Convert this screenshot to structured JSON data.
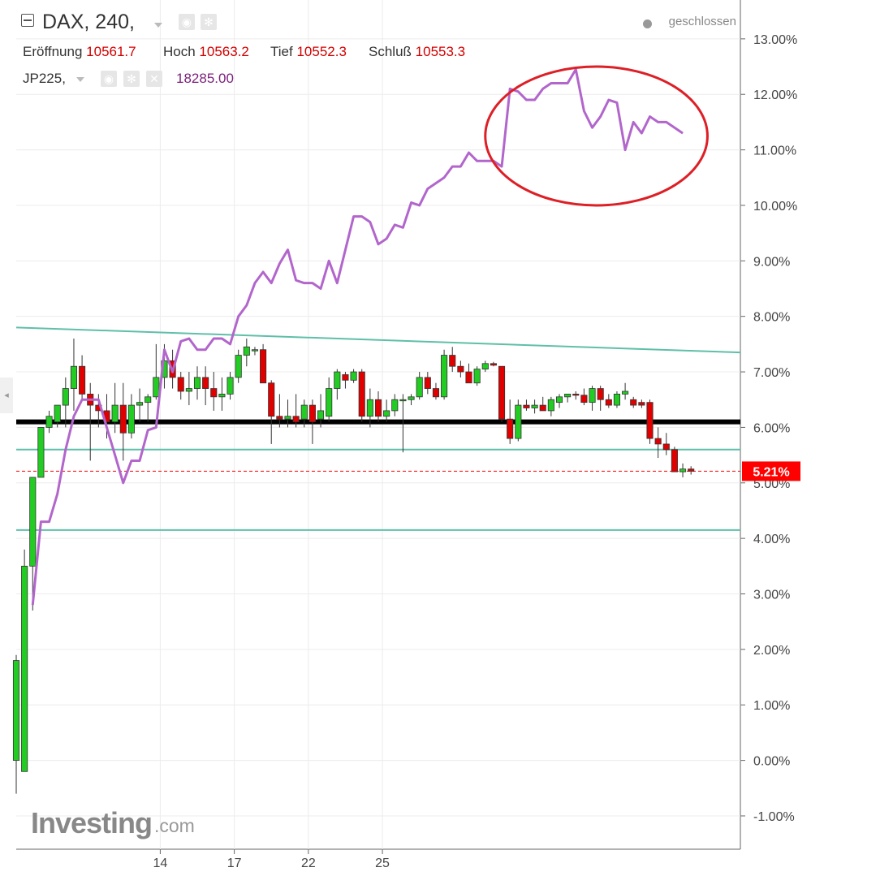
{
  "header": {
    "symbol_title": "DAX, 240,",
    "ohlc": [
      {
        "label": "Eröffnung",
        "value": "10561.7"
      },
      {
        "label": "Hoch",
        "value": "10563.2"
      },
      {
        "label": "Tief",
        "value": "10552.3"
      },
      {
        "label": "Schluß",
        "value": "10553.3"
      }
    ],
    "compare_symbol": "JP225,",
    "compare_value": "18285.00",
    "market_status": "geschlossen"
  },
  "branding": {
    "logo": "Investing",
    "logo_suffix": ".com"
  },
  "icons": [
    "collapse-icon",
    "eye-icon",
    "gear-icon",
    "close-icon",
    "caret-down-icon"
  ],
  "colors": {
    "up": "#22cc22",
    "down": "#e00000",
    "jp225_line": "#b266cc",
    "channel": "#5fbfa8",
    "support": "#000000",
    "annotation": "#dd1f26",
    "last_price": "#ff0000"
  },
  "chart_data": {
    "type": "candlestick+line",
    "x_tick_labels": [
      "14",
      "17",
      "22",
      "25"
    ],
    "y_axis": {
      "unit": "%",
      "range": [
        -1.6,
        13.7
      ],
      "tick_labels": [
        "13.00%",
        "12.00%",
        "11.00%",
        "10.00%",
        "9.00%",
        "8.00%",
        "7.00%",
        "6.00%",
        "5.00%",
        "4.00%",
        "3.00%",
        "2.00%",
        "1.00%",
        "0.00%",
        "-1.00%"
      ],
      "ticks": [
        13,
        12,
        11,
        10,
        9,
        8,
        7,
        6,
        5,
        4,
        3,
        2,
        1,
        0,
        -1
      ]
    },
    "last_value_label": "5.21%",
    "last_value": 5.21,
    "x_tick_positions": [
      17.5,
      26.5,
      35.5,
      44.5
    ],
    "series": [
      {
        "name": "DAX",
        "kind": "candlestick",
        "candles": [
          [
            0.0,
            0.0,
            1.9,
            -0.6,
            1.8
          ],
          [
            1.0,
            -0.2,
            3.8,
            -0.2,
            3.5
          ],
          [
            2.0,
            3.5,
            5.1,
            2.7,
            5.1
          ],
          [
            3.0,
            5.1,
            6.0,
            5.1,
            6.0
          ],
          [
            4.0,
            6.0,
            6.3,
            5.9,
            6.2
          ],
          [
            5.0,
            6.1,
            6.4,
            6.0,
            6.4
          ],
          [
            6.0,
            6.4,
            6.9,
            6.0,
            6.7
          ],
          [
            7.0,
            6.7,
            7.6,
            6.3,
            7.1
          ],
          [
            8.0,
            7.1,
            7.3,
            6.5,
            6.6
          ],
          [
            9.0,
            6.6,
            6.8,
            5.4,
            6.4
          ],
          [
            10.0,
            6.4,
            6.6,
            6.0,
            6.3
          ],
          [
            11.0,
            6.3,
            6.6,
            5.8,
            6.1
          ],
          [
            12.0,
            6.1,
            6.8,
            5.9,
            6.4
          ],
          [
            13.0,
            6.4,
            6.8,
            5.4,
            5.9
          ],
          [
            14.0,
            5.9,
            6.6,
            5.8,
            6.4
          ],
          [
            15.0,
            6.4,
            6.7,
            6.1,
            6.45
          ],
          [
            16.0,
            6.45,
            6.6,
            6.1,
            6.55
          ],
          [
            17.0,
            6.55,
            7.5,
            6.5,
            6.9
          ],
          [
            18.0,
            6.9,
            7.5,
            6.7,
            7.2
          ],
          [
            19.0,
            7.2,
            7.4,
            6.7,
            6.9
          ],
          [
            20.0,
            6.9,
            7.0,
            6.5,
            6.65
          ],
          [
            21.0,
            6.65,
            7.0,
            6.4,
            6.7
          ],
          [
            22.0,
            6.7,
            7.1,
            6.5,
            6.9
          ],
          [
            23.0,
            6.9,
            7.1,
            6.4,
            6.7
          ],
          [
            24.0,
            6.7,
            7.0,
            6.3,
            6.55
          ],
          [
            25.0,
            6.55,
            6.9,
            6.3,
            6.6
          ],
          [
            26.0,
            6.6,
            7.0,
            6.5,
            6.9
          ],
          [
            27.0,
            6.9,
            7.4,
            6.8,
            7.3
          ],
          [
            28.0,
            7.3,
            7.6,
            7.1,
            7.45
          ],
          [
            29.0,
            7.4,
            7.45,
            7.3,
            7.4
          ],
          [
            30.0,
            7.4,
            7.5,
            6.9,
            6.8
          ],
          [
            31.0,
            6.8,
            6.85,
            5.7,
            6.2
          ],
          [
            32.0,
            6.2,
            6.6,
            6.0,
            6.15
          ],
          [
            33.0,
            6.15,
            6.5,
            6.0,
            6.2
          ],
          [
            34.0,
            6.2,
            6.6,
            6.0,
            6.1
          ],
          [
            35.0,
            6.15,
            6.5,
            6.0,
            6.4
          ],
          [
            36.0,
            6.4,
            6.5,
            5.7,
            6.1
          ],
          [
            37.0,
            6.15,
            6.6,
            6.0,
            6.3
          ],
          [
            38.0,
            6.2,
            6.9,
            6.1,
            6.7
          ],
          [
            39.0,
            6.7,
            7.05,
            6.5,
            7.0
          ],
          [
            40.0,
            6.95,
            7.0,
            6.7,
            6.85
          ],
          [
            41.0,
            6.85,
            7.05,
            6.8,
            7.0
          ],
          [
            42.0,
            7.0,
            7.05,
            6.1,
            6.2
          ],
          [
            43.0,
            6.2,
            6.7,
            6.0,
            6.5
          ],
          [
            44.0,
            6.5,
            6.65,
            6.1,
            6.2
          ],
          [
            45.0,
            6.2,
            6.5,
            6.1,
            6.3
          ],
          [
            46.0,
            6.3,
            6.6,
            6.2,
            6.5
          ],
          [
            47.0,
            6.5,
            6.6,
            5.55,
            6.5
          ],
          [
            48.0,
            6.5,
            6.6,
            6.4,
            6.55
          ],
          [
            49.0,
            6.55,
            7.0,
            6.5,
            6.9
          ],
          [
            50.0,
            6.9,
            7.0,
            6.6,
            6.7
          ],
          [
            51.0,
            6.7,
            6.8,
            6.5,
            6.55
          ],
          [
            52.0,
            6.55,
            7.4,
            6.5,
            7.3
          ],
          [
            53.0,
            7.3,
            7.45,
            7.0,
            7.1
          ],
          [
            54.0,
            7.1,
            7.2,
            6.9,
            7.0
          ],
          [
            55.0,
            7.0,
            7.15,
            6.8,
            6.8
          ],
          [
            56.0,
            6.8,
            7.1,
            6.75,
            7.05
          ],
          [
            57.0,
            7.05,
            7.2,
            7.0,
            7.15
          ],
          [
            58.0,
            7.15,
            7.18,
            7.1,
            7.12
          ],
          [
            59.0,
            7.1,
            7.1,
            6.1,
            6.15
          ],
          [
            60.0,
            6.15,
            6.5,
            5.7,
            5.8
          ],
          [
            61.0,
            5.8,
            6.5,
            5.75,
            6.4
          ],
          [
            62.0,
            6.4,
            6.5,
            6.3,
            6.35
          ],
          [
            63.0,
            6.35,
            6.5,
            6.25,
            6.4
          ],
          [
            64.0,
            6.4,
            6.55,
            6.3,
            6.3
          ],
          [
            65.0,
            6.3,
            6.55,
            6.2,
            6.5
          ],
          [
            66.0,
            6.45,
            6.6,
            6.35,
            6.55
          ],
          [
            67.0,
            6.55,
            6.6,
            6.45,
            6.6
          ],
          [
            68.0,
            6.6,
            6.65,
            6.5,
            6.58
          ],
          [
            69.0,
            6.58,
            6.7,
            6.4,
            6.45
          ],
          [
            70.0,
            6.45,
            6.75,
            6.3,
            6.7
          ],
          [
            71.0,
            6.7,
            6.75,
            6.3,
            6.5
          ],
          [
            72.0,
            6.5,
            6.6,
            6.35,
            6.4
          ],
          [
            73.0,
            6.4,
            6.65,
            6.35,
            6.6
          ],
          [
            74.0,
            6.6,
            6.8,
            6.5,
            6.65
          ],
          [
            75.0,
            6.5,
            6.55,
            6.35,
            6.4
          ],
          [
            76.0,
            6.45,
            6.5,
            6.35,
            6.4
          ],
          [
            77.0,
            6.45,
            6.5,
            5.7,
            5.8
          ],
          [
            78.0,
            5.8,
            6.0,
            5.45,
            5.7
          ],
          [
            79.0,
            5.7,
            5.9,
            5.5,
            5.6
          ],
          [
            80.0,
            5.6,
            5.65,
            5.35,
            5.2
          ],
          [
            81.0,
            5.2,
            5.35,
            5.1,
            5.25
          ],
          [
            82.0,
            5.25,
            5.3,
            5.15,
            5.21
          ]
        ]
      },
      {
        "name": "JP225",
        "kind": "line",
        "points": [
          [
            2.0,
            2.8
          ],
          [
            3.0,
            4.3
          ],
          [
            4.0,
            4.3
          ],
          [
            5.0,
            4.8
          ],
          [
            6.0,
            5.6
          ],
          [
            7.0,
            6.2
          ],
          [
            8.0,
            6.5
          ],
          [
            9.0,
            6.5
          ],
          [
            10.0,
            6.5
          ],
          [
            11.0,
            6.0
          ],
          [
            12.0,
            5.5
          ],
          [
            13.0,
            5.0
          ],
          [
            14.0,
            5.4
          ],
          [
            15.0,
            5.4
          ],
          [
            16.0,
            5.95
          ],
          [
            17.0,
            6.0
          ],
          [
            18.0,
            7.4
          ],
          [
            19.0,
            7.0
          ],
          [
            20.0,
            7.55
          ],
          [
            21.0,
            7.6
          ],
          [
            22.0,
            7.4
          ],
          [
            23.0,
            7.4
          ],
          [
            24.0,
            7.6
          ],
          [
            25.0,
            7.6
          ],
          [
            26.0,
            7.5
          ],
          [
            27.0,
            8.0
          ],
          [
            28.0,
            8.2
          ],
          [
            29.0,
            8.6
          ],
          [
            30.0,
            8.8
          ],
          [
            31.0,
            8.6
          ],
          [
            32.0,
            8.95
          ],
          [
            33.0,
            9.2
          ],
          [
            34.0,
            8.65
          ],
          [
            35.0,
            8.6
          ],
          [
            36.0,
            8.6
          ],
          [
            37.0,
            8.5
          ],
          [
            38.0,
            9.0
          ],
          [
            39.0,
            8.6
          ],
          [
            40.0,
            9.2
          ],
          [
            41.0,
            9.8
          ],
          [
            42.0,
            9.8
          ],
          [
            43.0,
            9.7
          ],
          [
            44.0,
            9.3
          ],
          [
            45.0,
            9.4
          ],
          [
            46.0,
            9.65
          ],
          [
            47.0,
            9.6
          ],
          [
            48.0,
            10.05
          ],
          [
            49.0,
            10.0
          ],
          [
            50.0,
            10.3
          ],
          [
            51.0,
            10.4
          ],
          [
            52.0,
            10.5
          ],
          [
            53.0,
            10.7
          ],
          [
            54.0,
            10.7
          ],
          [
            55.0,
            10.95
          ],
          [
            56.0,
            10.8
          ],
          [
            57.0,
            10.8
          ],
          [
            58.0,
            10.8
          ],
          [
            59.0,
            10.7
          ],
          [
            60.0,
            12.1
          ],
          [
            61.0,
            12.05
          ],
          [
            62.0,
            11.9
          ],
          [
            63.0,
            11.9
          ],
          [
            64.0,
            12.1
          ],
          [
            65.0,
            12.2
          ],
          [
            66.0,
            12.2
          ],
          [
            67.0,
            12.2
          ],
          [
            68.0,
            12.45
          ],
          [
            69.0,
            11.7
          ],
          [
            70.0,
            11.4
          ],
          [
            71.0,
            11.6
          ],
          [
            72.0,
            11.9
          ],
          [
            73.0,
            11.85
          ],
          [
            74.0,
            11.0
          ],
          [
            75.0,
            11.5
          ],
          [
            76.0,
            11.3
          ],
          [
            77.0,
            11.6
          ],
          [
            78.0,
            11.5
          ],
          [
            79.0,
            11.5
          ],
          [
            80.0,
            11.4
          ],
          [
            81.0,
            11.3
          ]
        ]
      }
    ],
    "lines": {
      "channel_upper": [
        [
          0,
          7.8
        ],
        [
          88,
          7.35
        ]
      ],
      "channel_mid": [
        [
          0,
          5.6
        ],
        [
          88,
          5.6
        ]
      ],
      "channel_lower": [
        [
          0,
          4.15
        ],
        [
          88,
          4.15
        ]
      ],
      "support": [
        [
          0,
          6.1
        ],
        [
          88,
          6.1
        ]
      ],
      "last_price": [
        [
          0,
          5.21
        ],
        [
          88,
          5.21
        ]
      ]
    },
    "annotation": {
      "type": "ellipse",
      "around": "JP225 recent peak",
      "center": [
        70.5,
        11.25
      ],
      "rx": 13.5,
      "ry": 1.25
    }
  }
}
